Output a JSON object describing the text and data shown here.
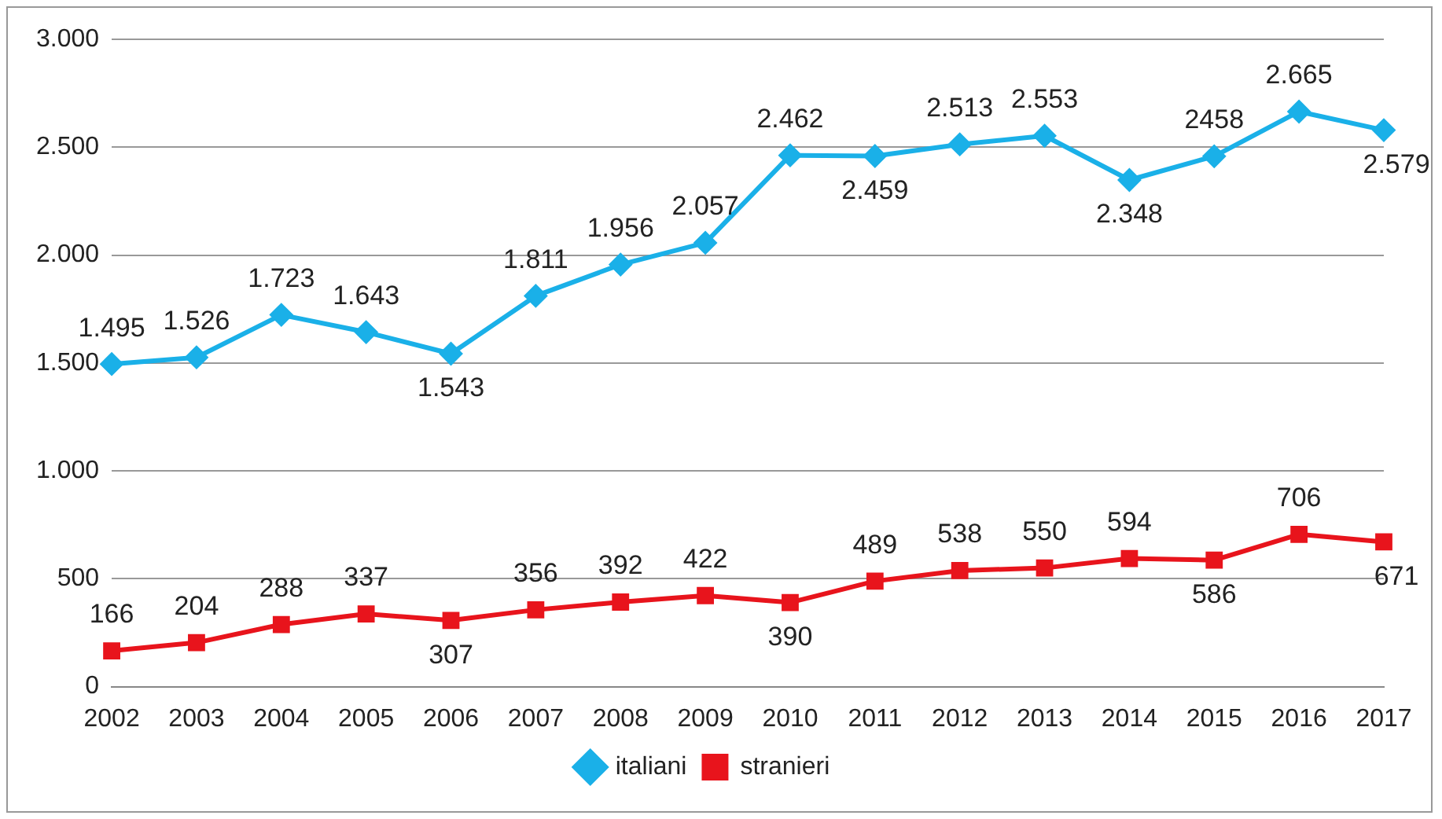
{
  "chart_data": {
    "type": "line",
    "categories": [
      "2002",
      "2003",
      "2004",
      "2005",
      "2006",
      "2007",
      "2008",
      "2009",
      "2010",
      "2011",
      "2012",
      "2013",
      "2014",
      "2015",
      "2016",
      "2017"
    ],
    "series": [
      {
        "name": "italiani",
        "color": "#1ab0e8",
        "marker": "diamond",
        "values": [
          1495,
          1526,
          1723,
          1643,
          1543,
          1811,
          1956,
          2057,
          2462,
          2459,
          2513,
          2553,
          2348,
          2458,
          2665,
          2579
        ],
        "value_labels": [
          "1.495",
          "1.526",
          "1.723",
          "1.643",
          "1.543",
          "1.811",
          "1.956",
          "2.057",
          "2.462",
          "2.459",
          "2.513",
          "2.553",
          "2.348",
          "2458",
          "2.665",
          "2.579"
        ]
      },
      {
        "name": "stranieri",
        "color": "#e8141c",
        "marker": "square",
        "values": [
          166,
          204,
          288,
          337,
          307,
          356,
          392,
          422,
          390,
          489,
          538,
          550,
          594,
          586,
          706,
          671
        ],
        "value_labels": [
          "166",
          "204",
          "288",
          "337",
          "307",
          "356",
          "392",
          "422",
          "390",
          "489",
          "538",
          "550",
          "594",
          "586",
          "706",
          "671"
        ]
      }
    ],
    "ylim": [
      0,
      3000
    ],
    "yticks": [
      {
        "value": 0,
        "label": "0"
      },
      {
        "value": 500,
        "label": "500"
      },
      {
        "value": 1000,
        "label": "1.000"
      },
      {
        "value": 1500,
        "label": "1.500"
      },
      {
        "value": 2000,
        "label": "2.000"
      },
      {
        "value": 2500,
        "label": "2.500"
      },
      {
        "value": 3000,
        "label": "3.000"
      }
    ],
    "grid": "y",
    "legend": "bottom",
    "line_style": "solid"
  }
}
